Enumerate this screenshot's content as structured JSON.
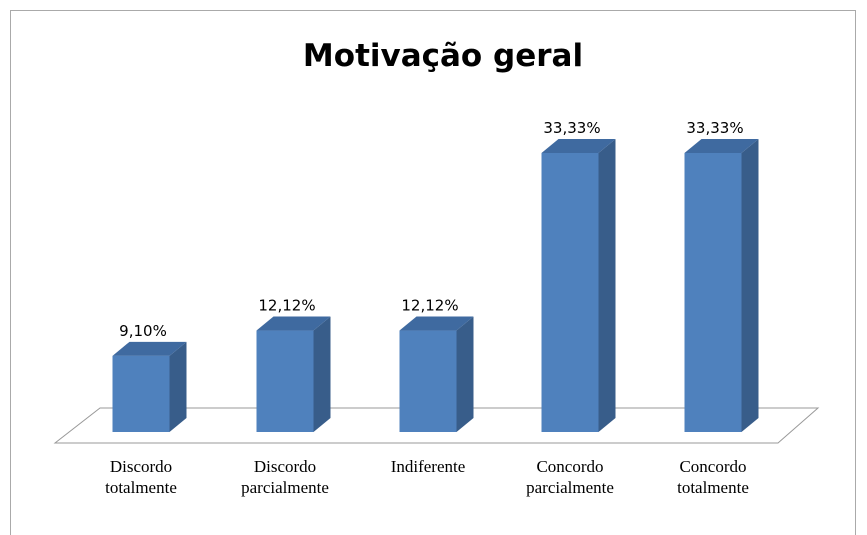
{
  "chart_data": {
    "type": "bar3d",
    "title": "Motivação geral",
    "categories": [
      "Discordo totalmente",
      "Discordo parcialmente",
      "Indiferente",
      "Concordo parcialmente",
      "Concordo totalmente"
    ],
    "values": [
      9.1,
      12.12,
      12.12,
      33.33,
      33.33
    ],
    "value_labels": [
      "9,10%",
      "12,12%",
      "12,12%",
      "33,33%",
      "33,33%"
    ],
    "color": "#4f81bd"
  }
}
